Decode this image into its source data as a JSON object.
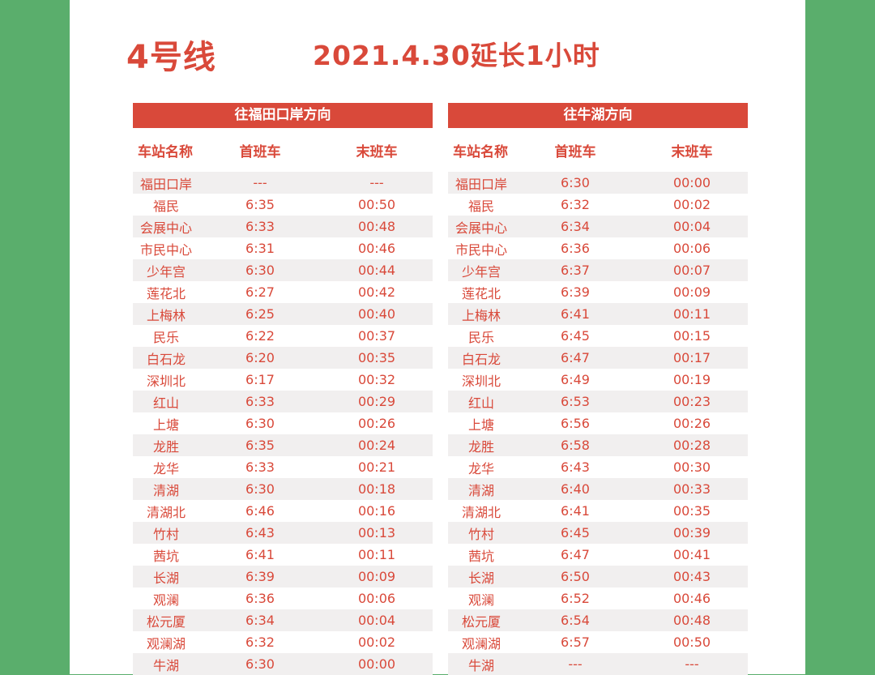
{
  "header": {
    "line": "4号线",
    "notice": "2021.4.30延长1小时"
  },
  "columns": {
    "station": "车站名称",
    "first": "首班车",
    "last": "末班车"
  },
  "left": {
    "direction": "往福田口岸方向",
    "rows": [
      {
        "station": "福田口岸",
        "first": "---",
        "last": "---"
      },
      {
        "station": "福民",
        "first": "6:35",
        "last": "00:50"
      },
      {
        "station": "会展中心",
        "first": "6:33",
        "last": "00:48"
      },
      {
        "station": "市民中心",
        "first": "6:31",
        "last": "00:46"
      },
      {
        "station": "少年宫",
        "first": "6:30",
        "last": "00:44"
      },
      {
        "station": "莲花北",
        "first": "6:27",
        "last": "00:42"
      },
      {
        "station": "上梅林",
        "first": "6:25",
        "last": "00:40"
      },
      {
        "station": "民乐",
        "first": "6:22",
        "last": "00:37"
      },
      {
        "station": "白石龙",
        "first": "6:20",
        "last": "00:35"
      },
      {
        "station": "深圳北",
        "first": "6:17",
        "last": "00:32"
      },
      {
        "station": "红山",
        "first": "6:33",
        "last": "00:29"
      },
      {
        "station": "上塘",
        "first": "6:30",
        "last": "00:26"
      },
      {
        "station": "龙胜",
        "first": "6:35",
        "last": "00:24"
      },
      {
        "station": "龙华",
        "first": "6:33",
        "last": "00:21"
      },
      {
        "station": "清湖",
        "first": "6:30",
        "last": "00:18"
      },
      {
        "station": "清湖北",
        "first": "6:46",
        "last": "00:16"
      },
      {
        "station": "竹村",
        "first": "6:43",
        "last": "00:13"
      },
      {
        "station": "茜坑",
        "first": "6:41",
        "last": "00:11"
      },
      {
        "station": "长湖",
        "first": "6:39",
        "last": "00:09"
      },
      {
        "station": "观澜",
        "first": "6:36",
        "last": "00:06"
      },
      {
        "station": "松元厦",
        "first": "6:34",
        "last": "00:04"
      },
      {
        "station": "观澜湖",
        "first": "6:32",
        "last": "00:02"
      },
      {
        "station": "牛湖",
        "first": "6:30",
        "last": "00:00"
      }
    ]
  },
  "right": {
    "direction": "往牛湖方向",
    "rows": [
      {
        "station": "福田口岸",
        "first": "6:30",
        "last": "00:00"
      },
      {
        "station": "福民",
        "first": "6:32",
        "last": "00:02"
      },
      {
        "station": "会展中心",
        "first": "6:34",
        "last": "00:04"
      },
      {
        "station": "市民中心",
        "first": "6:36",
        "last": "00:06"
      },
      {
        "station": "少年宫",
        "first": "6:37",
        "last": "00:07"
      },
      {
        "station": "莲花北",
        "first": "6:39",
        "last": "00:09"
      },
      {
        "station": "上梅林",
        "first": "6:41",
        "last": "00:11"
      },
      {
        "station": "民乐",
        "first": "6:45",
        "last": "00:15"
      },
      {
        "station": "白石龙",
        "first": "6:47",
        "last": "00:17"
      },
      {
        "station": "深圳北",
        "first": "6:49",
        "last": "00:19"
      },
      {
        "station": "红山",
        "first": "6:53",
        "last": "00:23"
      },
      {
        "station": "上塘",
        "first": "6:56",
        "last": "00:26"
      },
      {
        "station": "龙胜",
        "first": "6:58",
        "last": "00:28"
      },
      {
        "station": "龙华",
        "first": "6:43",
        "last": "00:30"
      },
      {
        "station": "清湖",
        "first": "6:40",
        "last": "00:33"
      },
      {
        "station": "清湖北",
        "first": "6:41",
        "last": "00:35"
      },
      {
        "station": "竹村",
        "first": "6:45",
        "last": "00:39"
      },
      {
        "station": "茜坑",
        "first": "6:47",
        "last": "00:41"
      },
      {
        "station": "长湖",
        "first": "6:50",
        "last": "00:43"
      },
      {
        "station": "观澜",
        "first": "6:52",
        "last": "00:46"
      },
      {
        "station": "松元厦",
        "first": "6:54",
        "last": "00:48"
      },
      {
        "station": "观澜湖",
        "first": "6:57",
        "last": "00:50"
      },
      {
        "station": "牛湖",
        "first": "---",
        "last": "---"
      }
    ]
  },
  "colors": {
    "background": "#5aae6c",
    "accent": "#d9493a",
    "row_shade": "#f1efef"
  }
}
